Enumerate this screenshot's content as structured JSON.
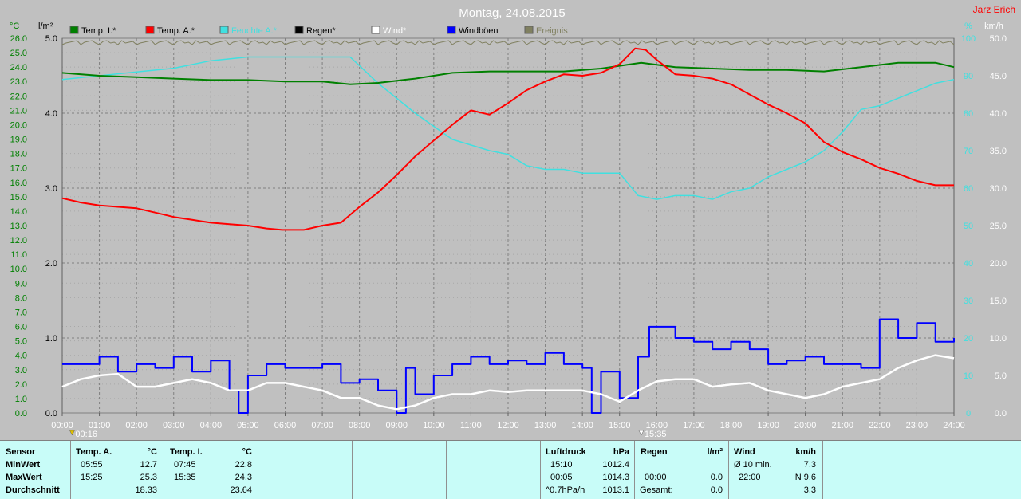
{
  "title": "Montag, 24.08.2015",
  "author": "Jarz Erich",
  "colors": {
    "temp_i": "#008000",
    "temp_a": "#ff0000",
    "feuchte": "#40e0e0",
    "regen": "#000000",
    "wind": "#ffffff",
    "windboeen": "#0000ff",
    "ereignis": "#808060"
  },
  "chart_data": {
    "type": "line",
    "title": "Montag, 24.08.2015",
    "x_ticks": [
      "00:00",
      "01:00",
      "02:00",
      "03:00",
      "04:00",
      "05:00",
      "06:00",
      "07:00",
      "08:00",
      "09:00",
      "10:00",
      "11:00",
      "12:00",
      "13:00",
      "14:00",
      "15:00",
      "16:00",
      "17:00",
      "18:00",
      "19:00",
      "20:00",
      "21:00",
      "22:00",
      "23:00",
      "24:00"
    ],
    "axes": {
      "temp": {
        "unit": "°C",
        "ylim": [
          0,
          26
        ],
        "ticks": [
          "0.0",
          "1.0",
          "2.0",
          "3.0",
          "4.0",
          "5.0",
          "6.0",
          "7.0",
          "8.0",
          "9.0",
          "10.0",
          "11.0",
          "12.0",
          "13.0",
          "14.0",
          "15.0",
          "16.0",
          "17.0",
          "18.0",
          "19.0",
          "20.0",
          "21.0",
          "22.0",
          "23.0",
          "24.0",
          "25.0",
          "26.0"
        ]
      },
      "rain": {
        "unit": "l/m²",
        "ylim": [
          0,
          5
        ],
        "ticks": [
          "0.0",
          "1.0",
          "2.0",
          "3.0",
          "4.0",
          "5.0"
        ]
      },
      "humidity": {
        "unit": "%",
        "ylim": [
          0,
          100
        ],
        "ticks": [
          "0",
          "10",
          "20",
          "30",
          "40",
          "50",
          "60",
          "70",
          "80",
          "90",
          "100"
        ]
      },
      "wind": {
        "unit": "km/h",
        "ylim": [
          0,
          50
        ],
        "ticks": [
          "0.0",
          "5.0",
          "10.0",
          "15.0",
          "20.0",
          "25.0",
          "30.0",
          "35.0",
          "40.0",
          "45.0",
          "50.0"
        ]
      }
    },
    "markers": [
      "00:16",
      "15:35"
    ],
    "legend": [
      {
        "key": "temp_i",
        "label": "Temp. I.*"
      },
      {
        "key": "temp_a",
        "label": "Temp. A.*"
      },
      {
        "key": "feuchte",
        "label": "Feuchte A.*"
      },
      {
        "key": "regen",
        "label": "Regen*"
      },
      {
        "key": "wind",
        "label": "Wind*"
      },
      {
        "key": "windboeen",
        "label": "Windböen"
      },
      {
        "key": "ereignis",
        "label": "Ereignis"
      }
    ],
    "series": [
      {
        "key": "temp_i",
        "axis": "temp",
        "x": [
          0,
          1,
          2,
          3,
          4,
          5,
          6,
          7,
          7.75,
          8.5,
          9.5,
          10.5,
          11.5,
          12.5,
          13.5,
          14.5,
          15.58,
          16.5,
          17.5,
          18.5,
          19.5,
          20.5,
          21.5,
          22.5,
          23.5,
          24
        ],
        "values": [
          23.6,
          23.4,
          23.3,
          23.2,
          23.1,
          23.1,
          23.0,
          23.0,
          22.8,
          22.9,
          23.2,
          23.6,
          23.7,
          23.7,
          23.7,
          23.9,
          24.3,
          24.0,
          23.9,
          23.8,
          23.8,
          23.7,
          24.0,
          24.3,
          24.3,
          24.0
        ]
      },
      {
        "key": "temp_a",
        "axis": "temp",
        "x": [
          0,
          0.5,
          1,
          1.5,
          2,
          2.5,
          3,
          3.5,
          4,
          4.5,
          5,
          5.5,
          5.92,
          6.5,
          7,
          7.5,
          8,
          8.5,
          9,
          9.5,
          10,
          10.5,
          11,
          11.5,
          12,
          12.5,
          13,
          13.5,
          14,
          14.5,
          15,
          15.42,
          15.7,
          16,
          16.5,
          17,
          17.5,
          18,
          18.5,
          19,
          19.5,
          20,
          20.5,
          21,
          21.5,
          22,
          22.5,
          23,
          23.5,
          24
        ],
        "values": [
          14.9,
          14.6,
          14.4,
          14.3,
          14.2,
          13.9,
          13.6,
          13.4,
          13.2,
          13.1,
          13.0,
          12.8,
          12.7,
          12.7,
          13.0,
          13.2,
          14.3,
          15.3,
          16.5,
          17.8,
          18.9,
          20.0,
          21.0,
          20.7,
          21.5,
          22.4,
          23.0,
          23.5,
          23.4,
          23.6,
          24.2,
          25.3,
          25.2,
          24.5,
          23.5,
          23.4,
          23.2,
          22.8,
          22.1,
          21.4,
          20.8,
          20.1,
          18.8,
          18.1,
          17.6,
          17.0,
          16.6,
          16.1,
          15.8,
          15.8
        ]
      },
      {
        "key": "feuchte",
        "axis": "humidity",
        "x": [
          0,
          1,
          2,
          3,
          4,
          5,
          6,
          7,
          7.75,
          8.5,
          9.5,
          10.5,
          11.5,
          12,
          12.5,
          13,
          13.5,
          14,
          14.5,
          15,
          15.5,
          16,
          16.5,
          17,
          17.5,
          18,
          18.5,
          19,
          19.5,
          20,
          20.5,
          21,
          21.5,
          22,
          22.5,
          23,
          23.5,
          24
        ],
        "values": [
          89,
          90,
          91,
          92,
          94,
          95,
          95,
          95,
          95,
          88,
          80,
          73,
          70,
          69,
          66,
          65,
          65,
          64,
          64,
          64,
          58,
          57,
          58,
          58,
          57,
          59,
          60,
          63,
          65,
          67,
          70,
          75,
          81,
          82,
          84,
          86,
          88,
          89
        ]
      },
      {
        "key": "wind",
        "axis": "wind",
        "x": [
          0,
          0.5,
          1,
          1.5,
          2,
          2.5,
          3,
          3.5,
          4,
          4.5,
          5,
          5.5,
          6,
          6.5,
          7,
          7.5,
          8,
          8.5,
          9,
          9.5,
          10,
          10.5,
          11,
          11.5,
          12,
          12.5,
          13,
          13.5,
          14,
          14.5,
          15,
          15.5,
          16,
          16.5,
          17,
          17.5,
          18,
          18.5,
          19,
          19.5,
          20,
          20.5,
          21,
          21.5,
          22,
          22.5,
          23,
          23.5,
          24
        ],
        "values": [
          3.5,
          4.5,
          5.0,
          5.2,
          3.5,
          3.5,
          4.0,
          4.5,
          4.0,
          3.0,
          3.0,
          4.0,
          4.0,
          3.5,
          3.0,
          2.0,
          2.0,
          1.0,
          0.5,
          1.0,
          2.0,
          2.5,
          2.5,
          3.0,
          2.8,
          3.0,
          3.0,
          3.0,
          3.0,
          2.5,
          1.5,
          3.0,
          4.2,
          4.5,
          4.5,
          3.5,
          3.8,
          4.0,
          3.0,
          2.5,
          2.0,
          2.5,
          3.5,
          4.0,
          4.5,
          6.0,
          7.0,
          7.7,
          7.3
        ]
      },
      {
        "key": "windboeen",
        "axis": "wind",
        "x": [
          0,
          0.5,
          1,
          1.5,
          2,
          2.5,
          3,
          3.5,
          4,
          4.5,
          4.75,
          5,
          5.5,
          6,
          6.5,
          7,
          7.5,
          8,
          8.5,
          9,
          9.25,
          9.5,
          10,
          10.5,
          11,
          11.5,
          12,
          12.5,
          13,
          13.5,
          14,
          14.25,
          14.5,
          15,
          15.5,
          15.8,
          16,
          16.5,
          17,
          17.5,
          18,
          18.5,
          19,
          19.5,
          20,
          20.5,
          21,
          21.5,
          22,
          22.5,
          23,
          23.5,
          24
        ],
        "values": [
          6.5,
          6.5,
          7.5,
          5.5,
          6.5,
          6.0,
          7.5,
          5.5,
          7.0,
          3.0,
          0,
          5.0,
          6.5,
          6.0,
          6.0,
          6.5,
          4.0,
          4.5,
          3.0,
          0,
          6.0,
          2.5,
          5.0,
          6.5,
          7.5,
          6.5,
          7.0,
          6.5,
          8.0,
          6.5,
          6.0,
          0,
          5.5,
          2.0,
          7.5,
          11.5,
          11.5,
          10.0,
          9.5,
          8.5,
          9.5,
          8.5,
          6.5,
          7.0,
          7.5,
          6.5,
          6.5,
          6.0,
          12.5,
          10.0,
          12.0,
          9.5,
          10.0
        ]
      }
    ]
  },
  "panel": {
    "sensor": {
      "header": "Sensor",
      "min": "MinWert",
      "max": "MaxWert",
      "avg": "Durchschnitt"
    },
    "temp_a": {
      "header": "Temp. A.",
      "unit": "°C",
      "min_time": "05:55",
      "min_val": "12.7",
      "max_time": "15:25",
      "max_val": "25.3",
      "avg": "18.33"
    },
    "temp_i": {
      "header": "Temp. I.",
      "unit": "°C",
      "min_time": "07:45",
      "min_val": "22.8",
      "max_time": "15:35",
      "max_val": "24.3",
      "avg": "23.64"
    },
    "luftdruck": {
      "header": "Luftdruck",
      "unit": "hPa",
      "min_time": "15:10",
      "min_val": "1012.4",
      "max_time": "00:05",
      "max_val": "1014.3",
      "trend_label": "^0.7hPa/h",
      "trend_val": "1013.1"
    },
    "regen": {
      "header": "Regen",
      "unit": "l/m²",
      "row1_time": "00:00",
      "row1_val": "0.0",
      "total_label": "Gesamt:",
      "total_val": "0.0"
    },
    "wind": {
      "header": "Wind",
      "unit": "km/h",
      "avg_label": "Ø 10 min.",
      "avg_val": "7.3",
      "time": "22:00",
      "dir_val": "N 9.6",
      "last_val": "3.3"
    }
  }
}
